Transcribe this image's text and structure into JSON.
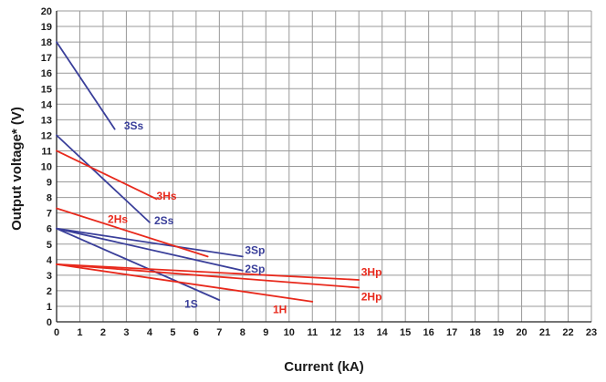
{
  "chart_data": {
    "type": "line",
    "xlabel": "Current (kA)",
    "ylabel": "Output voltage* (V)",
    "xlim": [
      0,
      23
    ],
    "ylim": [
      0,
      20
    ],
    "x_ticks": [
      "0",
      "1",
      "2",
      "3",
      "4",
      "5",
      "6",
      "7",
      "8",
      "9",
      "10",
      "11",
      "12",
      "13",
      "14",
      "15",
      "16",
      "17",
      "18",
      "19",
      "20",
      "21",
      "22",
      "23"
    ],
    "y_ticks": [
      "0",
      "1",
      "2",
      "3",
      "4",
      "5",
      "6",
      "7",
      "8",
      "9",
      "10",
      "11",
      "12",
      "13",
      "14",
      "15",
      "16",
      "17",
      "18",
      "19",
      "20"
    ],
    "grid": true,
    "colors": {
      "blue": "#3a3f9a",
      "red": "#e8291c",
      "grid": "#999999"
    },
    "series": [
      {
        "name": "3Ss",
        "color": "blue",
        "points": [
          [
            0,
            18
          ],
          [
            2.5,
            12.4
          ]
        ],
        "label_at": [
          2.9,
          12.6
        ]
      },
      {
        "name": "2Ss",
        "color": "blue",
        "points": [
          [
            0,
            12
          ],
          [
            4,
            6.4
          ]
        ],
        "label_at": [
          4.2,
          6.5
        ]
      },
      {
        "name": "3Sp",
        "color": "blue",
        "points": [
          [
            0,
            6
          ],
          [
            8,
            4.2
          ]
        ],
        "label_at": [
          8.1,
          4.6
        ]
      },
      {
        "name": "2Sp",
        "color": "blue",
        "points": [
          [
            0,
            6
          ],
          [
            8,
            3.3
          ]
        ],
        "label_at": [
          8.1,
          3.4
        ]
      },
      {
        "name": "1S",
        "color": "blue",
        "points": [
          [
            0,
            6
          ],
          [
            7,
            1.4
          ]
        ],
        "label_at": [
          5.5,
          1.15
        ]
      },
      {
        "name": "3Hs",
        "color": "red",
        "points": [
          [
            0,
            11
          ],
          [
            4.3,
            7.9
          ]
        ],
        "label_at": [
          4.3,
          8.1
        ]
      },
      {
        "name": "2Hs",
        "color": "red",
        "points": [
          [
            0,
            7.3
          ],
          [
            6.5,
            4.2
          ]
        ],
        "label_at": [
          2.2,
          6.6
        ]
      },
      {
        "name": "3Hp",
        "color": "red",
        "points": [
          [
            0,
            3.7
          ],
          [
            13,
            2.7
          ]
        ],
        "label_at": [
          13.1,
          3.2
        ]
      },
      {
        "name": "2Hp",
        "color": "red",
        "points": [
          [
            0,
            3.7
          ],
          [
            13,
            2.2
          ]
        ],
        "label_at": [
          13.1,
          1.6
        ]
      },
      {
        "name": "1H",
        "color": "red",
        "points": [
          [
            0,
            3.7
          ],
          [
            11,
            1.3
          ]
        ],
        "label_at": [
          9.3,
          0.8
        ]
      }
    ]
  }
}
